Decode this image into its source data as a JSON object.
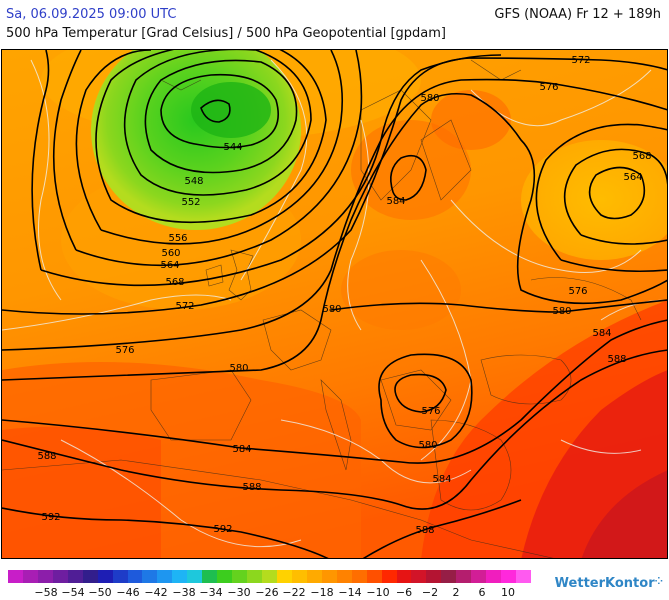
{
  "header": {
    "date": "Sa, 06.09.2025 09:00 UTC",
    "model": "GFS (NOAA) Fr 12 + 189h",
    "title": "500 hPa Temperatur [Grad Celsius] / 500 hPa Geopotential [gpdam]"
  },
  "map": {
    "contour_labels": [
      {
        "text": "572",
        "pos": [
          580,
          59
        ]
      },
      {
        "text": "576",
        "pos": [
          548,
          86
        ]
      },
      {
        "text": "580",
        "pos": [
          429,
          97
        ]
      },
      {
        "text": "544",
        "pos": [
          232,
          146
        ]
      },
      {
        "text": "568",
        "pos": [
          641,
          155
        ]
      },
      {
        "text": "564",
        "pos": [
          632,
          176
        ]
      },
      {
        "text": "548",
        "pos": [
          193,
          180
        ]
      },
      {
        "text": "584",
        "pos": [
          395,
          200
        ]
      },
      {
        "text": "552",
        "pos": [
          190,
          201
        ]
      },
      {
        "text": "556",
        "pos": [
          177,
          237
        ]
      },
      {
        "text": "560",
        "pos": [
          170,
          252
        ]
      },
      {
        "text": "564",
        "pos": [
          169,
          264
        ]
      },
      {
        "text": "568",
        "pos": [
          174,
          281
        ]
      },
      {
        "text": "576",
        "pos": [
          577,
          290
        ]
      },
      {
        "text": "572",
        "pos": [
          184,
          305
        ]
      },
      {
        "text": "580",
        "pos": [
          331,
          308
        ]
      },
      {
        "text": "580",
        "pos": [
          561,
          310
        ]
      },
      {
        "text": "584",
        "pos": [
          601,
          332
        ]
      },
      {
        "text": "576",
        "pos": [
          124,
          349
        ]
      },
      {
        "text": "588",
        "pos": [
          616,
          358
        ]
      },
      {
        "text": "580",
        "pos": [
          238,
          367
        ]
      },
      {
        "text": "576",
        "pos": [
          430,
          410
        ]
      },
      {
        "text": "580",
        "pos": [
          427,
          444
        ]
      },
      {
        "text": "584",
        "pos": [
          241,
          448
        ]
      },
      {
        "text": "588",
        "pos": [
          46,
          455
        ]
      },
      {
        "text": "584",
        "pos": [
          441,
          478
        ]
      },
      {
        "text": "588",
        "pos": [
          251,
          486
        ]
      },
      {
        "text": "592",
        "pos": [
          50,
          516
        ]
      },
      {
        "text": "592",
        "pos": [
          222,
          528
        ]
      },
      {
        "text": "588",
        "pos": [
          424,
          529
        ]
      }
    ]
  },
  "legend": {
    "colors": [
      "#c81ec8",
      "#a81eb4",
      "#8c1eaa",
      "#6e1ea0",
      "#501e96",
      "#321e8c",
      "#1e1eb4",
      "#1e3cc8",
      "#1e5adc",
      "#1e78e6",
      "#1e96f0",
      "#1eb4f5",
      "#1ec8dc",
      "#1ebe50",
      "#3ccd1e",
      "#64d21e",
      "#8cd71e",
      "#b4dc1e",
      "#ffd200",
      "#ffbe00",
      "#ffaa00",
      "#ff9600",
      "#ff8200",
      "#ff6e00",
      "#ff5000",
      "#ff2800",
      "#e61414",
      "#d21428",
      "#b41432",
      "#961e46",
      "#b41e6e",
      "#d21e96",
      "#f01ebe",
      "#ff28dc",
      "#ff5af0"
    ],
    "labels": [
      "−58",
      "−54",
      "−50",
      "−46",
      "−42",
      "−38",
      "−34",
      "−30",
      "−26",
      "−22",
      "−18",
      "−14",
      "−10",
      "−6",
      "−2",
      "2",
      "6",
      "10"
    ]
  },
  "logo": {
    "text": "WetterKontor"
  }
}
